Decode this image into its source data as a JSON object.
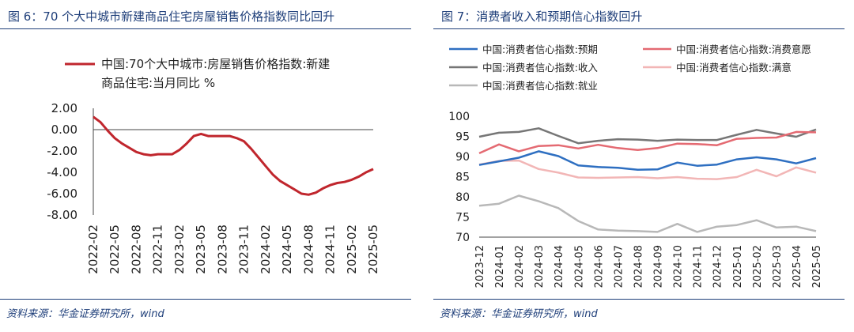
{
  "charts": {
    "left": {
      "title": "图 6：70 个大中城市新建商品住宅房屋销售价格指数同比回升",
      "source": "资料来源：华金证券研究所，wind",
      "legend_line1": "中国:70个大中城市:房屋销售价格指数:新建",
      "legend_line2": "商品住宅:当月同比 %"
    },
    "right": {
      "title": "图 7：消费者收入和预期信心指数回升",
      "source": "资料来源：华金证券研究所，wind"
    }
  },
  "chart_data": [
    {
      "type": "line",
      "x": [
        "2022-02",
        "2022-03",
        "2022-04",
        "2022-05",
        "2022-06",
        "2022-07",
        "2022-08",
        "2022-09",
        "2022-10",
        "2022-11",
        "2022-12",
        "2023-01",
        "2023-02",
        "2023-03",
        "2023-04",
        "2023-05",
        "2023-06",
        "2023-07",
        "2023-08",
        "2023-09",
        "2023-10",
        "2023-11",
        "2023-12",
        "2024-01",
        "2024-02",
        "2024-03",
        "2024-04",
        "2024-05",
        "2024-06",
        "2024-07",
        "2024-08",
        "2024-09",
        "2024-10",
        "2024-11",
        "2024-12",
        "2025-01",
        "2025-02",
        "2025-03",
        "2025-04",
        "2025-05"
      ],
      "x_ticks": [
        "2022-02",
        "2022-05",
        "2022-08",
        "2022-11",
        "2023-02",
        "2023-05",
        "2023-08",
        "2023-11",
        "2024-02",
        "2024-05",
        "2024-08",
        "2024-11",
        "2025-02",
        "2025-05"
      ],
      "series": [
        {
          "name": "中国:70个大中城市:房屋销售价格指数:新建商品住宅:当月同比 %",
          "color": "#c0262d",
          "values": [
            1.2,
            0.7,
            -0.1,
            -0.8,
            -1.3,
            -1.7,
            -2.1,
            -2.3,
            -2.4,
            -2.3,
            -2.3,
            -2.3,
            -1.9,
            -1.3,
            -0.6,
            -0.4,
            -0.6,
            -0.6,
            -0.6,
            -0.6,
            -0.8,
            -1.1,
            -1.8,
            -2.6,
            -3.4,
            -4.2,
            -4.8,
            -5.2,
            -5.6,
            -6.0,
            -6.1,
            -5.9,
            -5.5,
            -5.2,
            -5.0,
            -4.9,
            -4.7,
            -4.4,
            -4.0,
            -3.7
          ]
        }
      ],
      "y_ticks": [
        "2.00",
        "0.00",
        "-2.00",
        "-4.00",
        "-6.00",
        "-8.00"
      ],
      "ylim": [
        -8,
        2
      ],
      "legend": "top"
    },
    {
      "type": "line",
      "x": [
        "2023-12",
        "2024-01",
        "2024-02",
        "2024-03",
        "2024-04",
        "2024-05",
        "2024-06",
        "2024-07",
        "2024-08",
        "2024-09",
        "2024-10",
        "2024-11",
        "2024-12",
        "2025-01",
        "2025-02",
        "2025-03",
        "2025-04",
        "2025-05"
      ],
      "series": [
        {
          "name": "中国:消费者信心指数:预期",
          "color": "#2e6fc1",
          "values": [
            87.9,
            88.8,
            89.7,
            91.3,
            90.1,
            87.8,
            87.4,
            87.2,
            86.7,
            86.8,
            88.5,
            87.7,
            88.0,
            89.3,
            89.8,
            89.3,
            88.3,
            89.6
          ]
        },
        {
          "name": "中国:消费者信心指数:消费意愿",
          "color": "#e46a72",
          "values": [
            90.8,
            93.0,
            91.3,
            92.6,
            92.8,
            92.0,
            92.9,
            92.1,
            91.6,
            92.1,
            93.2,
            93.1,
            92.8,
            94.4,
            94.6,
            94.7,
            96.1,
            96.0
          ]
        },
        {
          "name": "中国:消费者信心指数:收入",
          "color": "#767676",
          "values": [
            94.9,
            95.9,
            96.1,
            97.0,
            95.1,
            93.3,
            93.9,
            94.3,
            94.2,
            93.9,
            94.2,
            94.1,
            94.1,
            95.4,
            96.6,
            95.7,
            94.9,
            96.7
          ]
        },
        {
          "name": "中国:消费者信心指数:满意",
          "color": "#f2b6b6",
          "values": [
            88.0,
            88.9,
            89.0,
            86.9,
            86.0,
            84.8,
            84.7,
            84.8,
            84.9,
            84.6,
            84.9,
            84.5,
            84.4,
            84.9,
            86.7,
            85.1,
            87.3,
            86.0
          ]
        },
        {
          "name": "中国:消费者信心指数:就业",
          "color": "#b8b8b8",
          "values": [
            77.8,
            78.3,
            80.3,
            78.9,
            77.2,
            74.0,
            71.9,
            71.6,
            71.5,
            71.3,
            73.3,
            71.3,
            72.6,
            73.0,
            74.2,
            72.4,
            72.6,
            71.5
          ]
        }
      ],
      "y_ticks": [
        "100",
        "95",
        "90",
        "85",
        "80",
        "75",
        "70"
      ],
      "ylim": [
        70,
        100
      ],
      "legend": "top"
    }
  ]
}
